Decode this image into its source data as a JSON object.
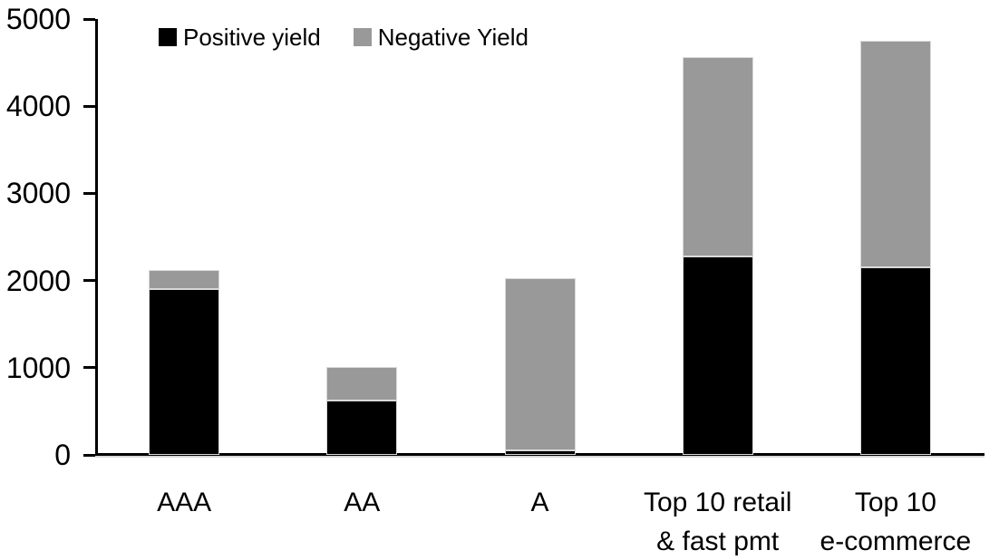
{
  "chart_data": {
    "type": "bar",
    "stacked": true,
    "title": "",
    "xlabel": "",
    "ylabel": "",
    "categories": [
      {
        "lines": [
          "AAA"
        ]
      },
      {
        "lines": [
          "AA"
        ]
      },
      {
        "lines": [
          "A"
        ]
      },
      {
        "lines": [
          "Top 10 retail",
          "& fast pmt"
        ]
      },
      {
        "lines": [
          "Top 10",
          "e-commerce"
        ]
      }
    ],
    "series": [
      {
        "name": "Positive yield",
        "color": "#000000",
        "values": [
          1900,
          620,
          50,
          2280,
          2150
        ]
      },
      {
        "name": "Negative Yield",
        "color": "#999999",
        "values": [
          220,
          390,
          1980,
          2280,
          2600
        ]
      }
    ],
    "totals": [
      2120,
      1010,
      2030,
      4560,
      4750
    ],
    "y_axis": {
      "min": 0,
      "max": 5000,
      "tick_interval": 1000,
      "ticks": [
        0,
        1000,
        2000,
        3000,
        4000,
        5000
      ]
    },
    "grid": false,
    "legend_position": "top-inside-left",
    "axis_color": "#000000",
    "background_color": "#ffffff"
  }
}
